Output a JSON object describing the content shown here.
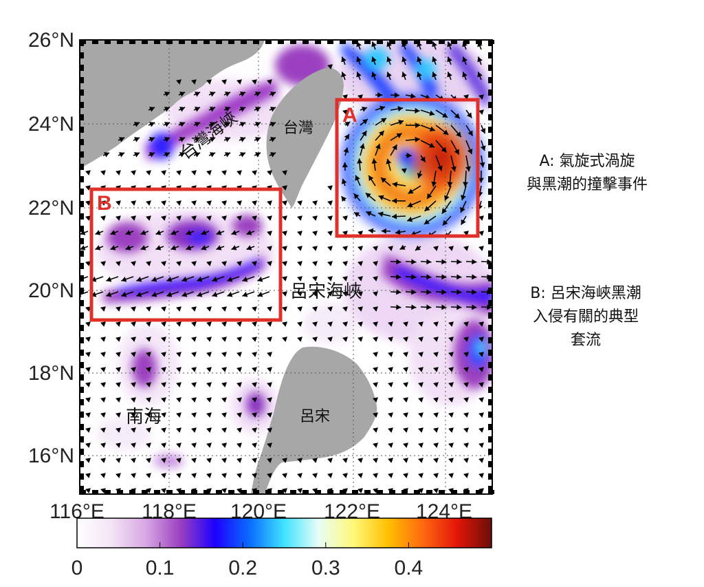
{
  "map": {
    "lat_labels": [
      "26°N",
      "24°N",
      "22°N",
      "20°N",
      "18°N",
      "16°N"
    ],
    "lon_labels": [
      "116°E",
      "118°E",
      "120°E",
      "122°E",
      "124°E"
    ],
    "place_labels": {
      "taiwan_strait": "台灣海峽",
      "taiwan": "台灣",
      "luzon_strait": "呂宋海峽",
      "south_sea": "南海",
      "luzon": "呂宋"
    },
    "box_a_label": "A",
    "box_b_label": "B",
    "colors": {
      "land": "#a7a7a7",
      "box": "#e0302a",
      "ocean": "#ffffff"
    }
  },
  "colorbar": {
    "tick_labels": [
      "0",
      "0.1",
      "0.2",
      "0.3",
      "0.4"
    ],
    "ticks": [
      0,
      0.1,
      0.2,
      0.3,
      0.4
    ],
    "range": [
      0,
      0.5
    ],
    "colors": [
      "#ffffff",
      "#f3e4f6",
      "#d8a6e3",
      "#9b3fc0",
      "#1d00ff",
      "#0a6dff",
      "#3fe4ff",
      "#e8fdf6",
      "#fff87a",
      "#ffc000",
      "#ff6a10",
      "#e31508",
      "#6b0f0a"
    ]
  },
  "annotations": {
    "a_line1": "A: 氣旋式渦旋",
    "a_line2": "與黑潮的撞擊事件",
    "b_line1": "B: 呂宋海峽黑潮",
    "b_line2": "入侵有關的典型",
    "b_line3": "套流"
  }
}
